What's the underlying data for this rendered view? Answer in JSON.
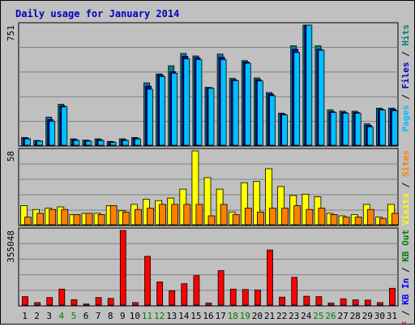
{
  "chart_data": {
    "type": "bar",
    "title": "Daily usage for January 2014",
    "categories": [
      "1",
      "2",
      "3",
      "4",
      "5",
      "6",
      "7",
      "8",
      "9",
      "10",
      "11",
      "12",
      "13",
      "14",
      "15",
      "16",
      "17",
      "18",
      "19",
      "20",
      "21",
      "22",
      "23",
      "24",
      "25",
      "26",
      "27",
      "28",
      "29",
      "30",
      "31"
    ],
    "weekend_days": [
      "4",
      "5",
      "11",
      "12",
      "18",
      "19",
      "25",
      "26"
    ],
    "panels": [
      {
        "id": "top",
        "max_label": "751",
        "ylim": [
          0,
          751
        ],
        "right_labels": [
          {
            "text": "Pages",
            "color": "#00c0ff"
          },
          {
            "text": " / ",
            "color": "#000000"
          },
          {
            "text": "Files",
            "color": "#0000c0"
          },
          {
            "text": " / ",
            "color": "#000000"
          },
          {
            "text": "Hits",
            "color": "#008080"
          }
        ],
        "series": [
          {
            "name": "Hits",
            "color": "#008080",
            "values": [
              48,
              30,
              176,
              256,
              40,
              32,
              40,
              24,
              40,
              48,
              390,
              446,
              497,
              574,
              558,
              362,
              570,
              418,
              529,
              421,
              330,
              201,
              622,
              751,
              622,
              222,
              213,
              213,
              134,
              232,
              232
            ]
          },
          {
            "name": "Files",
            "color": "#0000c0",
            "values": [
              45,
              28,
              160,
              246,
              35,
              30,
              35,
              22,
              35,
              45,
              370,
              440,
              460,
              556,
              548,
              360,
              550,
              410,
              520,
              410,
              320,
              195,
              600,
              751,
              600,
              210,
              205,
              205,
              125,
              225,
              225
            ]
          },
          {
            "name": "Pages",
            "color": "#00c0ff",
            "values": [
              40,
              26,
              150,
              240,
              30,
              26,
              30,
              18,
              30,
              40,
              350,
              430,
              450,
              540,
              536,
              356,
              536,
              404,
              513,
              402,
              310,
              190,
              580,
              751,
              594,
              205,
              200,
              200,
              115,
              220,
              216
            ]
          }
        ]
      },
      {
        "id": "middle",
        "max_label": "58",
        "ylim": [
          0,
          58
        ],
        "right_labels": [
          {
            "text": "Visits",
            "color": "#ffff00"
          },
          {
            "text": " / ",
            "color": "#000000"
          },
          {
            "text": "Sites",
            "color": "#ff8000"
          }
        ],
        "series": [
          {
            "name": "Visits",
            "color": "#ffff00",
            "values": [
              15,
              12,
              13,
              14,
              8,
              9,
              9,
              15,
              11,
              16,
              20,
              19,
              21,
              28,
              58,
              37,
              28,
              10,
              33,
              34,
              44,
              30,
              23,
              24,
              22,
              9,
              7,
              8,
              16,
              6,
              16
            ]
          },
          {
            "name": "Sites",
            "color": "#ff8000",
            "values": [
              6,
              9,
              12,
              12,
              8,
              9,
              8,
              15,
              10,
              12,
              13,
              16,
              16,
              16,
              16,
              7,
              16,
              8,
              13,
              10,
              13,
              13,
              15,
              12,
              13,
              8,
              6,
              6,
              12,
              5,
              9
            ]
          }
        ]
      },
      {
        "id": "bottom",
        "max_label": "355048",
        "ylim": [
          0,
          355048
        ],
        "right_labels": [
          {
            "text": "KB F",
            "color": "#ff0000"
          },
          {
            "text": " / ",
            "color": "#000000"
          },
          {
            "text": "KB In",
            "color": "#0000ff"
          },
          {
            "text": " / ",
            "color": "#000000"
          },
          {
            "text": "KB Out",
            "color": "#008000"
          }
        ],
        "series": [
          {
            "name": "KB F",
            "color": "#ff0000",
            "values": [
              40000,
              12000,
              36000,
              76000,
              26000,
              5000,
              36000,
              32000,
              355048,
              12000,
              232000,
              110000,
              68000,
              102000,
              140000,
              10000,
              164000,
              76000,
              74000,
              72000,
              262000,
              38000,
              132000,
              42000,
              40000,
              10000,
              30000,
              25000,
              24000,
              12000,
              80000
            ]
          }
        ]
      }
    ]
  }
}
